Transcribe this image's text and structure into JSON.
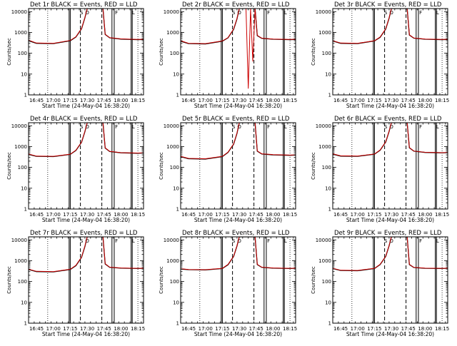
{
  "figure": {
    "panel_title_suffix": "BLACK = Events, RED = LLD",
    "x_axis_label": "Start Time (24-May-04 16:38:20)",
    "y_axis_label": "Counts/sec",
    "x_tick_labels": [
      "16:45",
      "17:00",
      "17:15",
      "17:30",
      "17:45",
      "18:00",
      "18:15"
    ],
    "y_tick_labels": [
      "1",
      "10",
      "100",
      "1000",
      "10000"
    ],
    "colors": {
      "events": "#000000",
      "lld": "#cc0000",
      "background": "#ffffff"
    }
  },
  "chart_data": [
    {
      "title": "Det 1r",
      "type": "line",
      "xlabel": "Start Time (24-May-04 16:38:20)",
      "ylabel": "Counts/sec",
      "scale_y": "log",
      "ylim": [
        1,
        14000
      ],
      "xlim": [
        "16:38",
        "18:20"
      ],
      "x": [
        "16:38",
        "16:45",
        "17:00",
        "17:15",
        "17:20",
        "17:25",
        "17:28",
        "17:30",
        "17:44",
        "17:46",
        "17:50",
        "18:00",
        "18:15",
        "18:20"
      ],
      "series": [
        {
          "name": "BLACK = Events",
          "values": [
            400,
            300,
            290,
            400,
            600,
            1500,
            5000,
            14000,
            14000,
            800,
            550,
            480,
            450,
            460
          ]
        },
        {
          "name": "RED = LLD",
          "values": [
            420,
            310,
            300,
            410,
            620,
            1550,
            5200,
            14000,
            14000,
            820,
            560,
            490,
            460,
            470
          ]
        }
      ]
    },
    {
      "title": "Det 2r",
      "type": "line",
      "xlabel": "Start Time (24-May-04 16:38:20)",
      "ylabel": "Counts/sec",
      "scale_y": "log",
      "ylim": [
        1,
        14000
      ],
      "xlim": [
        "16:38",
        "18:20"
      ],
      "x": [
        "16:38",
        "16:45",
        "17:00",
        "17:15",
        "17:20",
        "17:25",
        "17:28",
        "17:30",
        "17:36",
        "17:38",
        "17:40",
        "17:42",
        "17:44",
        "17:46",
        "17:50",
        "18:00",
        "18:15",
        "18:20"
      ],
      "series": [
        {
          "name": "BLACK = Events",
          "values": [
            380,
            290,
            280,
            380,
            550,
            1400,
            4500,
            14000,
            14000,
            14000,
            14000,
            14000,
            14000,
            700,
            520,
            470,
            450,
            460
          ]
        },
        {
          "name": "RED = LLD",
          "values": [
            400,
            300,
            290,
            390,
            560,
            1450,
            4700,
            14000,
            14000,
            2,
            14000,
            40,
            14000,
            720,
            530,
            480,
            460,
            470
          ]
        }
      ]
    },
    {
      "title": "Det 3r",
      "type": "line",
      "xlabel": "Start Time (24-May-04 16:38:20)",
      "ylabel": "Counts/sec",
      "scale_y": "log",
      "ylim": [
        1,
        14000
      ],
      "xlim": [
        "16:38",
        "18:20"
      ],
      "x": [
        "16:38",
        "16:45",
        "17:00",
        "17:15",
        "17:20",
        "17:25",
        "17:28",
        "17:30",
        "17:44",
        "17:46",
        "17:50",
        "18:00",
        "18:15",
        "18:20"
      ],
      "series": [
        {
          "name": "BLACK = Events",
          "values": [
            390,
            300,
            290,
            390,
            580,
            1450,
            4800,
            14000,
            14000,
            750,
            530,
            470,
            450,
            460
          ]
        },
        {
          "name": "RED = LLD",
          "values": [
            400,
            310,
            300,
            400,
            600,
            1500,
            5000,
            14000,
            14000,
            770,
            540,
            480,
            460,
            470
          ]
        }
      ]
    },
    {
      "title": "Det 4r",
      "type": "line",
      "xlabel": "Start Time (24-May-04 16:38:20)",
      "ylabel": "Counts/sec",
      "scale_y": "log",
      "ylim": [
        1,
        14000
      ],
      "xlim": [
        "16:38",
        "18:20"
      ],
      "x": [
        "16:38",
        "16:45",
        "17:00",
        "17:15",
        "17:20",
        "17:25",
        "17:28",
        "17:30",
        "17:44",
        "17:46",
        "17:50",
        "18:00",
        "18:15",
        "18:20"
      ],
      "series": [
        {
          "name": "BLACK = Events",
          "values": [
            420,
            340,
            330,
            420,
            650,
            1600,
            5200,
            14000,
            14000,
            850,
            580,
            500,
            480,
            490
          ]
        },
        {
          "name": "RED = LLD",
          "values": [
            440,
            350,
            340,
            430,
            670,
            1650,
            5400,
            14000,
            14000,
            870,
            590,
            510,
            490,
            500
          ]
        }
      ]
    },
    {
      "title": "Det 5r",
      "type": "line",
      "xlabel": "Start Time (24-May-04 16:38:20)",
      "ylabel": "Counts/sec",
      "scale_y": "log",
      "ylim": [
        1,
        14000
      ],
      "xlim": [
        "16:38",
        "18:20"
      ],
      "x": [
        "16:38",
        "16:45",
        "17:00",
        "17:15",
        "17:20",
        "17:25",
        "17:28",
        "17:30",
        "17:44",
        "17:46",
        "17:50",
        "18:00",
        "18:15",
        "18:20"
      ],
      "series": [
        {
          "name": "BLACK = Events",
          "values": [
            330,
            260,
            250,
            330,
            520,
            1300,
            4300,
            14000,
            14000,
            600,
            440,
            400,
            380,
            390
          ]
        },
        {
          "name": "RED = LLD",
          "values": [
            340,
            270,
            260,
            340,
            540,
            1350,
            4500,
            14000,
            14000,
            620,
            450,
            410,
            390,
            400
          ]
        }
      ]
    },
    {
      "title": "Det 6r",
      "type": "line",
      "xlabel": "Start Time (24-May-04 16:38:20)",
      "ylabel": "Counts/sec",
      "scale_y": "log",
      "ylim": [
        1,
        14000
      ],
      "xlim": [
        "16:38",
        "18:20"
      ],
      "x": [
        "16:38",
        "16:45",
        "17:00",
        "17:15",
        "17:20",
        "17:25",
        "17:28",
        "17:30",
        "17:44",
        "17:46",
        "17:50",
        "18:00",
        "18:15",
        "18:20"
      ],
      "series": [
        {
          "name": "BLACK = Events",
          "values": [
            430,
            350,
            340,
            430,
            660,
            1650,
            5300,
            14000,
            14000,
            870,
            600,
            520,
            500,
            510
          ]
        },
        {
          "name": "RED = LLD",
          "values": [
            450,
            360,
            350,
            440,
            680,
            1700,
            5500,
            14000,
            14000,
            890,
            610,
            530,
            510,
            520
          ]
        }
      ]
    },
    {
      "title": "Det 7r",
      "type": "line",
      "xlabel": "Start Time (24-May-04 16:38:20)",
      "ylabel": "Counts/sec",
      "scale_y": "log",
      "ylim": [
        1,
        14000
      ],
      "xlim": [
        "16:38",
        "18:20"
      ],
      "x": [
        "16:38",
        "16:45",
        "17:00",
        "17:15",
        "17:20",
        "17:25",
        "17:28",
        "17:30",
        "17:44",
        "17:46",
        "17:50",
        "18:00",
        "18:15",
        "18:20"
      ],
      "series": [
        {
          "name": "BLACK = Events",
          "values": [
            380,
            300,
            290,
            380,
            580,
            1450,
            4800,
            14000,
            14000,
            700,
            480,
            440,
            420,
            430
          ]
        },
        {
          "name": "RED = LLD",
          "values": [
            390,
            310,
            300,
            390,
            600,
            1500,
            5000,
            14000,
            14000,
            720,
            490,
            450,
            430,
            440
          ]
        }
      ]
    },
    {
      "title": "Det 8r",
      "type": "line",
      "xlabel": "Start Time (24-May-04 16:38:20)",
      "ylabel": "Counts/sec",
      "scale_y": "log",
      "ylim": [
        1,
        14000
      ],
      "xlim": [
        "16:38",
        "18:20"
      ],
      "x": [
        "16:38",
        "16:45",
        "17:00",
        "17:15",
        "17:20",
        "17:25",
        "17:28",
        "17:30",
        "17:44",
        "17:46",
        "17:50",
        "18:00",
        "18:15",
        "18:20"
      ],
      "series": [
        {
          "name": "BLACK = Events",
          "values": [
            400,
            370,
            360,
            420,
            640,
            1600,
            5100,
            14000,
            14000,
            650,
            480,
            440,
            420,
            430
          ]
        },
        {
          "name": "RED = LLD",
          "values": [
            410,
            380,
            370,
            430,
            660,
            1650,
            5300,
            14000,
            14000,
            670,
            490,
            450,
            430,
            440
          ]
        }
      ]
    },
    {
      "title": "Det 9r",
      "type": "line",
      "xlabel": "Start Time (24-May-04 16:38:20)",
      "ylabel": "Counts/sec",
      "scale_y": "log",
      "ylim": [
        1,
        14000
      ],
      "xlim": [
        "16:38",
        "18:20"
      ],
      "x": [
        "16:38",
        "16:45",
        "17:00",
        "17:15",
        "17:20",
        "17:25",
        "17:28",
        "17:30",
        "17:44",
        "17:46",
        "17:50",
        "18:00",
        "18:15",
        "18:20"
      ],
      "series": [
        {
          "name": "BLACK = Events",
          "values": [
            420,
            340,
            330,
            420,
            650,
            1600,
            5200,
            14000,
            14000,
            650,
            470,
            430,
            420,
            430
          ]
        },
        {
          "name": "RED = LLD",
          "values": [
            430,
            350,
            340,
            430,
            670,
            1650,
            5400,
            14000,
            14000,
            670,
            480,
            440,
            430,
            440
          ]
        }
      ]
    }
  ],
  "markers": {
    "solid_lines": [
      "17:14",
      "17:15",
      "17:52",
      "17:54",
      "18:09",
      "18:10"
    ],
    "dashed_lines": [
      "17:24",
      "17:43"
    ],
    "dotted_lines": [
      "16:55",
      "18:15"
    ],
    "glyphs": [
      {
        "x": "17:25",
        "label": "S"
      },
      {
        "x": "17:30",
        "label": "O"
      },
      {
        "x": "17:56",
        "label": "F"
      },
      {
        "x": "18:11",
        "label": "L"
      }
    ]
  }
}
